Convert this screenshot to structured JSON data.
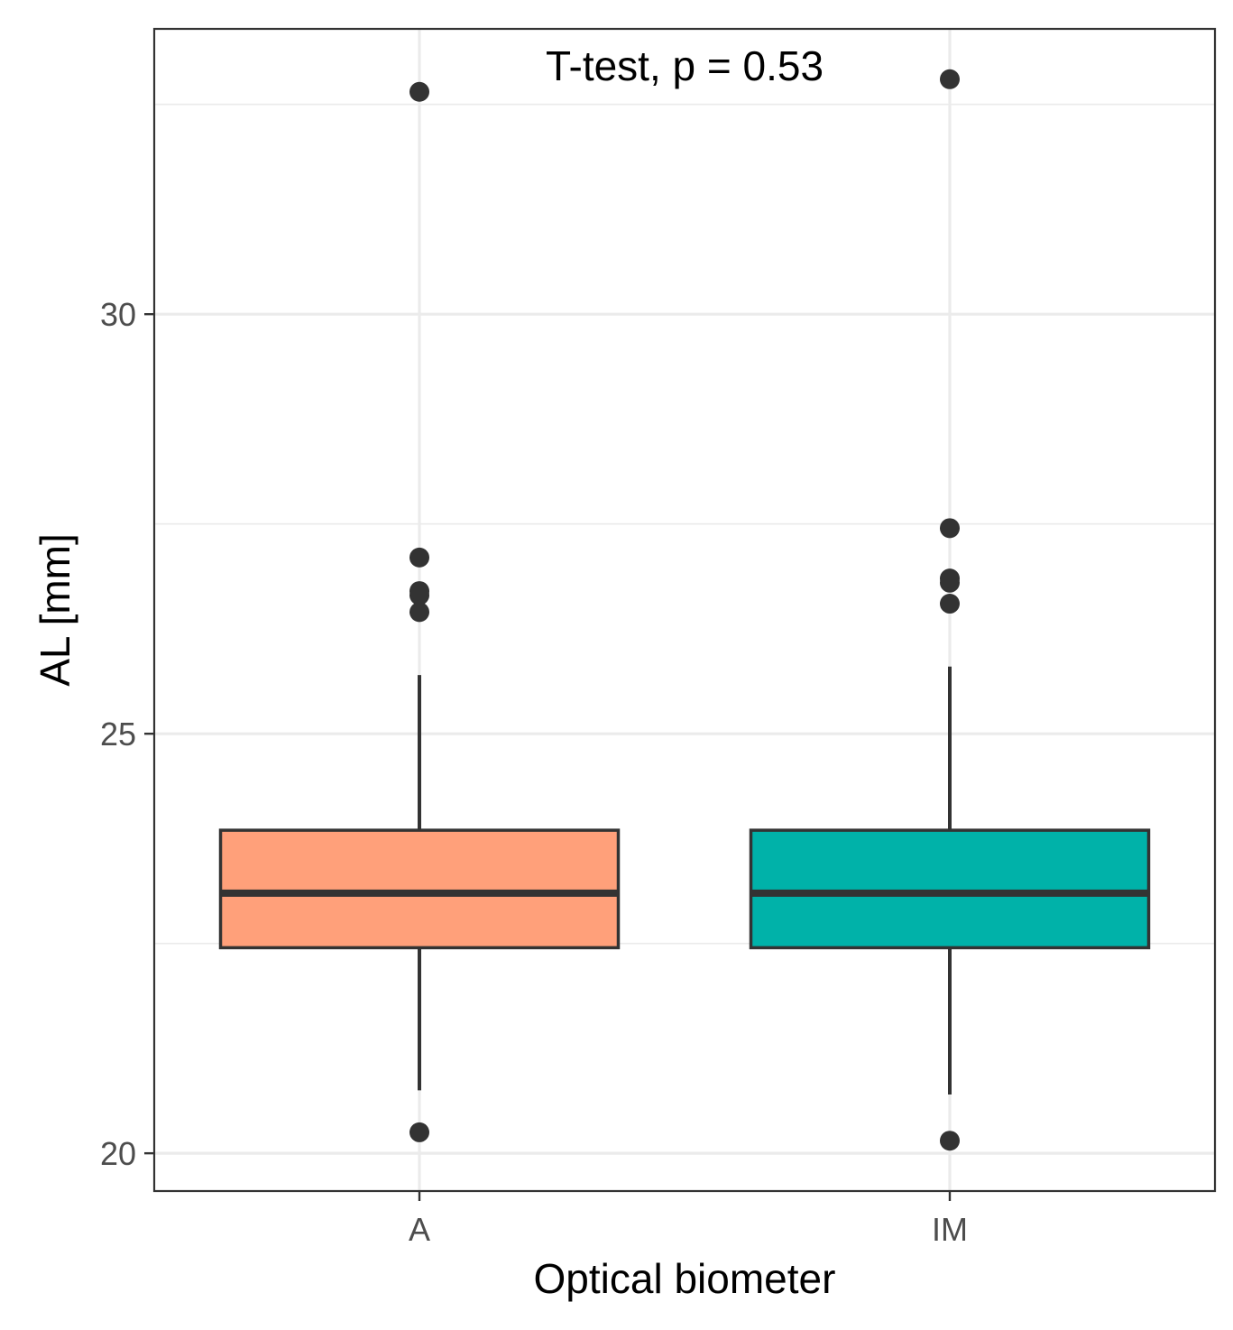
{
  "chart_data": {
    "type": "box",
    "title": "",
    "annotation": "T-test, p = 0.53",
    "xlabel": "Optical biometer",
    "ylabel": "AL [mm]",
    "ylim": [
      19.55,
      33.4
    ],
    "y_ticks": [
      20,
      25,
      30
    ],
    "y_tick_labels": [
      "20",
      "25",
      "30"
    ],
    "minor_gridlines_y": [
      22.5,
      27.5,
      32.5
    ],
    "grid": true,
    "legend": "none",
    "categories": [
      "A",
      "IM"
    ],
    "series": [
      {
        "category": "A",
        "color": "#FFA07A",
        "whisker_low": 20.75,
        "q1": 22.45,
        "median": 23.1,
        "q3": 23.85,
        "whisker_high": 25.7,
        "outliers": [
          20.25,
          26.45,
          26.65,
          26.7,
          27.1,
          32.65
        ]
      },
      {
        "category": "IM",
        "color": "#00B2A9",
        "whisker_low": 20.7,
        "q1": 22.45,
        "median": 23.1,
        "q3": 23.85,
        "whisker_high": 25.8,
        "outliers": [
          20.15,
          26.55,
          26.8,
          26.85,
          27.45,
          32.8
        ]
      }
    ],
    "colors": {
      "outline": "#333333",
      "points": "#333333",
      "grid": "#ebebeb",
      "panel_border": "#333333"
    }
  }
}
